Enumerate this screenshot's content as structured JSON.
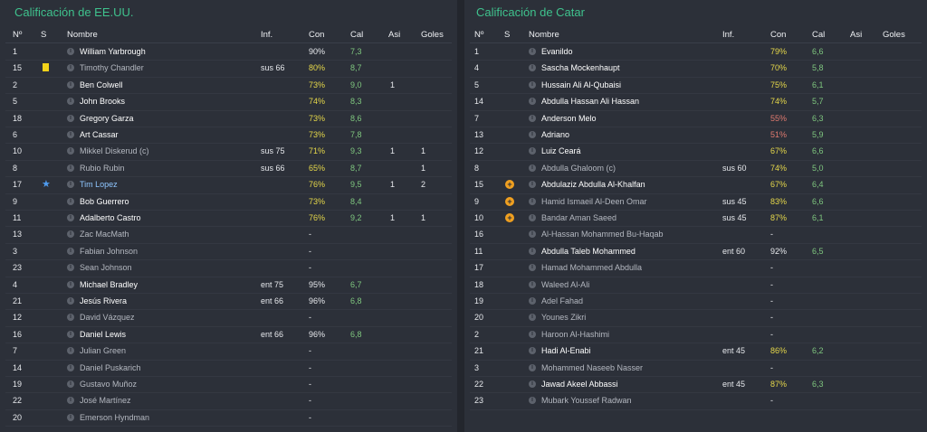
{
  "left": {
    "title": "Calificación de EE.UU.",
    "headers": {
      "no": "Nº",
      "s": "S",
      "name": "Nombre",
      "inf": "Inf.",
      "con": "Con",
      "cal": "Cal",
      "asi": "Asi",
      "goles": "Goles"
    },
    "rows": [
      {
        "no": "1",
        "name": "William Yarbrough",
        "inf": "",
        "con": "90%",
        "cal": "7,3",
        "asi": "",
        "goles": "",
        "style": "bright",
        "con_color": "w",
        "flag": ""
      },
      {
        "no": "15",
        "name": "Timothy Chandler",
        "inf": "sus 66",
        "con": "80%",
        "cal": "8,7",
        "asi": "",
        "goles": "",
        "style": "dim",
        "con_color": "y",
        "flag": "card"
      },
      {
        "no": "2",
        "name": "Ben Colwell",
        "inf": "",
        "con": "73%",
        "cal": "9,0",
        "asi": "1",
        "goles": "",
        "style": "bright",
        "con_color": "y",
        "flag": ""
      },
      {
        "no": "5",
        "name": "John Brooks",
        "inf": "",
        "con": "74%",
        "cal": "8,3",
        "asi": "",
        "goles": "",
        "style": "bright",
        "con_color": "y",
        "flag": ""
      },
      {
        "no": "18",
        "name": "Gregory Garza",
        "inf": "",
        "con": "73%",
        "cal": "8,6",
        "asi": "",
        "goles": "",
        "style": "bright",
        "con_color": "y",
        "flag": ""
      },
      {
        "no": "6",
        "name": "Art Cassar",
        "inf": "",
        "con": "73%",
        "cal": "7,8",
        "asi": "",
        "goles": "",
        "style": "bright",
        "con_color": "y",
        "flag": ""
      },
      {
        "no": "10",
        "name": "Mikkel Diskerud (c)",
        "inf": "sus 75",
        "con": "71%",
        "cal": "9,3",
        "asi": "1",
        "goles": "1",
        "style": "dim",
        "con_color": "y",
        "flag": ""
      },
      {
        "no": "8",
        "name": "Rubio Rubin",
        "inf": "sus 66",
        "con": "65%",
        "cal": "8,7",
        "asi": "",
        "goles": "1",
        "style": "dim",
        "con_color": "y",
        "flag": ""
      },
      {
        "no": "17",
        "name": "Tim Lopez",
        "inf": "",
        "con": "76%",
        "cal": "9,5",
        "asi": "1",
        "goles": "2",
        "style": "blue",
        "con_color": "y",
        "flag": "star"
      },
      {
        "no": "9",
        "name": "Bob Guerrero",
        "inf": "",
        "con": "73%",
        "cal": "8,4",
        "asi": "",
        "goles": "",
        "style": "bright",
        "con_color": "y",
        "flag": ""
      },
      {
        "no": "11",
        "name": "Adalberto Castro",
        "inf": "",
        "con": "76%",
        "cal": "9,2",
        "asi": "1",
        "goles": "1",
        "style": "bright",
        "con_color": "y",
        "flag": ""
      },
      {
        "no": "13",
        "name": "Zac MacMath",
        "inf": "",
        "con": "-",
        "cal": "",
        "asi": "",
        "goles": "",
        "style": "dim",
        "con_color": "w",
        "flag": ""
      },
      {
        "no": "3",
        "name": "Fabian Johnson",
        "inf": "",
        "con": "-",
        "cal": "",
        "asi": "",
        "goles": "",
        "style": "dim",
        "con_color": "w",
        "flag": ""
      },
      {
        "no": "23",
        "name": "Sean Johnson",
        "inf": "",
        "con": "-",
        "cal": "",
        "asi": "",
        "goles": "",
        "style": "dim",
        "con_color": "w",
        "flag": ""
      },
      {
        "no": "4",
        "name": "Michael Bradley",
        "inf": "ent 75",
        "con": "95%",
        "cal": "6,7",
        "asi": "",
        "goles": "",
        "style": "bright",
        "con_color": "w",
        "flag": ""
      },
      {
        "no": "21",
        "name": "Jesús Rivera",
        "inf": "ent 66",
        "con": "96%",
        "cal": "6,8",
        "asi": "",
        "goles": "",
        "style": "bright",
        "con_color": "w",
        "flag": ""
      },
      {
        "no": "12",
        "name": "David Vázquez",
        "inf": "",
        "con": "-",
        "cal": "",
        "asi": "",
        "goles": "",
        "style": "dim",
        "con_color": "w",
        "flag": ""
      },
      {
        "no": "16",
        "name": "Daniel Lewis",
        "inf": "ent 66",
        "con": "96%",
        "cal": "6,8",
        "asi": "",
        "goles": "",
        "style": "bright",
        "con_color": "w",
        "flag": ""
      },
      {
        "no": "7",
        "name": "Julian Green",
        "inf": "",
        "con": "-",
        "cal": "",
        "asi": "",
        "goles": "",
        "style": "dim",
        "con_color": "w",
        "flag": ""
      },
      {
        "no": "14",
        "name": "Daniel Puskarich",
        "inf": "",
        "con": "-",
        "cal": "",
        "asi": "",
        "goles": "",
        "style": "dim",
        "con_color": "w",
        "flag": ""
      },
      {
        "no": "19",
        "name": "Gustavo Muñoz",
        "inf": "",
        "con": "-",
        "cal": "",
        "asi": "",
        "goles": "",
        "style": "dim",
        "con_color": "w",
        "flag": ""
      },
      {
        "no": "22",
        "name": "José Martínez",
        "inf": "",
        "con": "-",
        "cal": "",
        "asi": "",
        "goles": "",
        "style": "dim",
        "con_color": "w",
        "flag": ""
      },
      {
        "no": "20",
        "name": "Emerson Hyndman",
        "inf": "",
        "con": "-",
        "cal": "",
        "asi": "",
        "goles": "",
        "style": "dim",
        "con_color": "w",
        "flag": ""
      }
    ]
  },
  "right": {
    "title": "Calificación de Catar",
    "headers": {
      "no": "Nº",
      "s": "S",
      "name": "Nombre",
      "inf": "Inf.",
      "con": "Con",
      "cal": "Cal",
      "asi": "Asi",
      "goles": "Goles"
    },
    "rows": [
      {
        "no": "1",
        "name": "Evanildo",
        "inf": "",
        "con": "79%",
        "cal": "6,6",
        "asi": "",
        "goles": "",
        "style": "bright",
        "con_color": "y",
        "flag": ""
      },
      {
        "no": "4",
        "name": "Sascha Mockenhaupt",
        "inf": "",
        "con": "70%",
        "cal": "5,8",
        "asi": "",
        "goles": "",
        "style": "bright",
        "con_color": "y",
        "flag": ""
      },
      {
        "no": "5",
        "name": "Hussain Ali Al-Qubaisi",
        "inf": "",
        "con": "75%",
        "cal": "6,1",
        "asi": "",
        "goles": "",
        "style": "bright",
        "con_color": "y",
        "flag": ""
      },
      {
        "no": "14",
        "name": "Abdulla Hassan Ali Hassan",
        "inf": "",
        "con": "74%",
        "cal": "5,7",
        "asi": "",
        "goles": "",
        "style": "bright",
        "con_color": "y",
        "flag": ""
      },
      {
        "no": "7",
        "name": "Anderson Melo",
        "inf": "",
        "con": "55%",
        "cal": "6,3",
        "asi": "",
        "goles": "",
        "style": "bright",
        "con_color": "r",
        "flag": ""
      },
      {
        "no": "13",
        "name": "Adriano",
        "inf": "",
        "con": "51%",
        "cal": "5,9",
        "asi": "",
        "goles": "",
        "style": "bright",
        "con_color": "r",
        "flag": ""
      },
      {
        "no": "12",
        "name": "Luiz Ceará",
        "inf": "",
        "con": "67%",
        "cal": "6,6",
        "asi": "",
        "goles": "",
        "style": "bright",
        "con_color": "y",
        "flag": ""
      },
      {
        "no": "8",
        "name": "Abdulla Ghaloom (c)",
        "inf": "sus 60",
        "con": "74%",
        "cal": "5,0",
        "asi": "",
        "goles": "",
        "style": "dim",
        "con_color": "y",
        "flag": ""
      },
      {
        "no": "15",
        "name": "Abdulaziz Abdulla Al-Khalfan",
        "inf": "",
        "con": "67%",
        "cal": "6,4",
        "asi": "",
        "goles": "",
        "style": "bright",
        "con_color": "y",
        "flag": "sub"
      },
      {
        "no": "9",
        "name": "Hamid Ismaeil Al-Deen Omar",
        "inf": "sus 45",
        "con": "83%",
        "cal": "6,6",
        "asi": "",
        "goles": "",
        "style": "dim",
        "con_color": "y",
        "flag": "sub"
      },
      {
        "no": "10",
        "name": "Bandar Aman Saeed",
        "inf": "sus 45",
        "con": "87%",
        "cal": "6,1",
        "asi": "",
        "goles": "",
        "style": "dim",
        "con_color": "y",
        "flag": "sub"
      },
      {
        "no": "16",
        "name": "Al-Hassan Mohammed Bu-Haqab",
        "inf": "",
        "con": "-",
        "cal": "",
        "asi": "",
        "goles": "",
        "style": "dim",
        "con_color": "w",
        "flag": ""
      },
      {
        "no": "11",
        "name": "Abdulla Taleb Mohammed",
        "inf": "ent 60",
        "con": "92%",
        "cal": "6,5",
        "asi": "",
        "goles": "",
        "style": "bright",
        "con_color": "w",
        "flag": ""
      },
      {
        "no": "17",
        "name": "Hamad Mohammed Abdulla",
        "inf": "",
        "con": "-",
        "cal": "",
        "asi": "",
        "goles": "",
        "style": "dim",
        "con_color": "w",
        "flag": ""
      },
      {
        "no": "18",
        "name": "Waleed Al-Ali",
        "inf": "",
        "con": "-",
        "cal": "",
        "asi": "",
        "goles": "",
        "style": "dim",
        "con_color": "w",
        "flag": ""
      },
      {
        "no": "19",
        "name": "Adel Fahad",
        "inf": "",
        "con": "-",
        "cal": "",
        "asi": "",
        "goles": "",
        "style": "dim",
        "con_color": "w",
        "flag": ""
      },
      {
        "no": "20",
        "name": "Younes Zikri",
        "inf": "",
        "con": "-",
        "cal": "",
        "asi": "",
        "goles": "",
        "style": "dim",
        "con_color": "w",
        "flag": ""
      },
      {
        "no": "2",
        "name": "Haroon Al-Hashimi",
        "inf": "",
        "con": "-",
        "cal": "",
        "asi": "",
        "goles": "",
        "style": "dim",
        "con_color": "w",
        "flag": ""
      },
      {
        "no": "21",
        "name": "Hadi Al-Enabi",
        "inf": "ent 45",
        "con": "86%",
        "cal": "6,2",
        "asi": "",
        "goles": "",
        "style": "bright",
        "con_color": "y",
        "flag": ""
      },
      {
        "no": "3",
        "name": "Mohammed Naseeb Nasser",
        "inf": "",
        "con": "-",
        "cal": "",
        "asi": "",
        "goles": "",
        "style": "dim",
        "con_color": "w",
        "flag": ""
      },
      {
        "no": "22",
        "name": "Jawad Akeel Abbassi",
        "inf": "ent 45",
        "con": "87%",
        "cal": "6,3",
        "asi": "",
        "goles": "",
        "style": "bright",
        "con_color": "y",
        "flag": ""
      },
      {
        "no": "23",
        "name": "Mubark Youssef Radwan",
        "inf": "",
        "con": "-",
        "cal": "",
        "asi": "",
        "goles": "",
        "style": "dim",
        "con_color": "w",
        "flag": ""
      }
    ]
  },
  "icons": {
    "info": "info-icon",
    "card": "yellow-card-icon",
    "star": "star-icon",
    "sub": "substitution-icon"
  },
  "colors": {
    "title": "#3fc28d",
    "con_yellow": "#e6d84a",
    "con_red": "#e07a6f",
    "cal_green": "#7fc77f",
    "card": "#f2d21a",
    "sub": "#f0a020",
    "star": "#4f9cf0"
  }
}
